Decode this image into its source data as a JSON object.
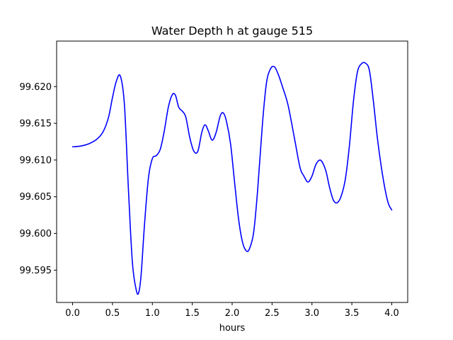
{
  "chart_data": {
    "type": "line",
    "title": "Water Depth h at gauge 515",
    "xlabel": "hours",
    "ylabel": "",
    "xlim": [
      -0.2,
      4.2
    ],
    "ylim": [
      99.5906,
      99.6262
    ],
    "xticks": [
      0.0,
      0.5,
      1.0,
      1.5,
      2.0,
      2.5,
      3.0,
      3.5,
      4.0
    ],
    "xtick_labels": [
      "0.0",
      "0.5",
      "1.0",
      "1.5",
      "2.0",
      "2.5",
      "3.0",
      "3.5",
      "4.0"
    ],
    "yticks": [
      99.595,
      99.6,
      99.605,
      99.61,
      99.615,
      99.62
    ],
    "ytick_labels": [
      "99.595",
      "99.600",
      "99.605",
      "99.610",
      "99.615",
      "99.620"
    ],
    "grid": false,
    "series": [
      {
        "color": "#0000ff",
        "x": [
          0.0,
          0.1,
          0.2,
          0.3,
          0.38,
          0.45,
          0.5,
          0.55,
          0.6,
          0.65,
          0.7,
          0.75,
          0.8,
          0.83,
          0.86,
          0.9,
          0.95,
          1.0,
          1.05,
          1.1,
          1.15,
          1.2,
          1.25,
          1.29,
          1.33,
          1.38,
          1.42,
          1.47,
          1.52,
          1.57,
          1.62,
          1.66,
          1.7,
          1.75,
          1.8,
          1.85,
          1.89,
          1.93,
          1.98,
          2.03,
          2.08,
          2.13,
          2.18,
          2.22,
          2.27,
          2.32,
          2.38,
          2.43,
          2.48,
          2.53,
          2.58,
          2.63,
          2.7,
          2.78,
          2.85,
          2.9,
          2.95,
          3.0,
          3.05,
          3.1,
          3.14,
          3.18,
          3.22,
          3.27,
          3.32,
          3.37,
          3.42,
          3.47,
          3.52,
          3.57,
          3.62,
          3.67,
          3.72,
          3.77,
          3.82,
          3.87,
          3.92,
          3.96,
          4.0
        ],
        "y": [
          99.6118,
          99.6119,
          99.6122,
          99.6128,
          99.6138,
          99.6158,
          99.6185,
          99.6208,
          99.6214,
          99.6175,
          99.606,
          99.596,
          99.5922,
          99.592,
          99.5945,
          99.601,
          99.6075,
          99.6102,
          99.6106,
          99.6115,
          99.614,
          99.6172,
          99.6189,
          99.6188,
          99.6172,
          99.6166,
          99.6158,
          99.613,
          99.6112,
          99.6112,
          99.6138,
          99.6148,
          99.614,
          99.6127,
          99.6138,
          99.616,
          99.6164,
          99.6152,
          99.6122,
          99.607,
          99.602,
          99.5988,
          99.5976,
          99.598,
          99.6002,
          99.606,
          99.615,
          99.6205,
          99.6224,
          99.6227,
          99.6216,
          99.62,
          99.6175,
          99.613,
          99.609,
          99.6078,
          99.607,
          99.6078,
          99.6094,
          99.61,
          99.6095,
          99.6083,
          99.6063,
          99.6045,
          99.6042,
          99.6052,
          99.6075,
          99.612,
          99.618,
          99.622,
          99.6231,
          99.6232,
          99.6222,
          99.618,
          99.613,
          99.609,
          99.6058,
          99.604,
          99.6032
        ]
      }
    ]
  }
}
